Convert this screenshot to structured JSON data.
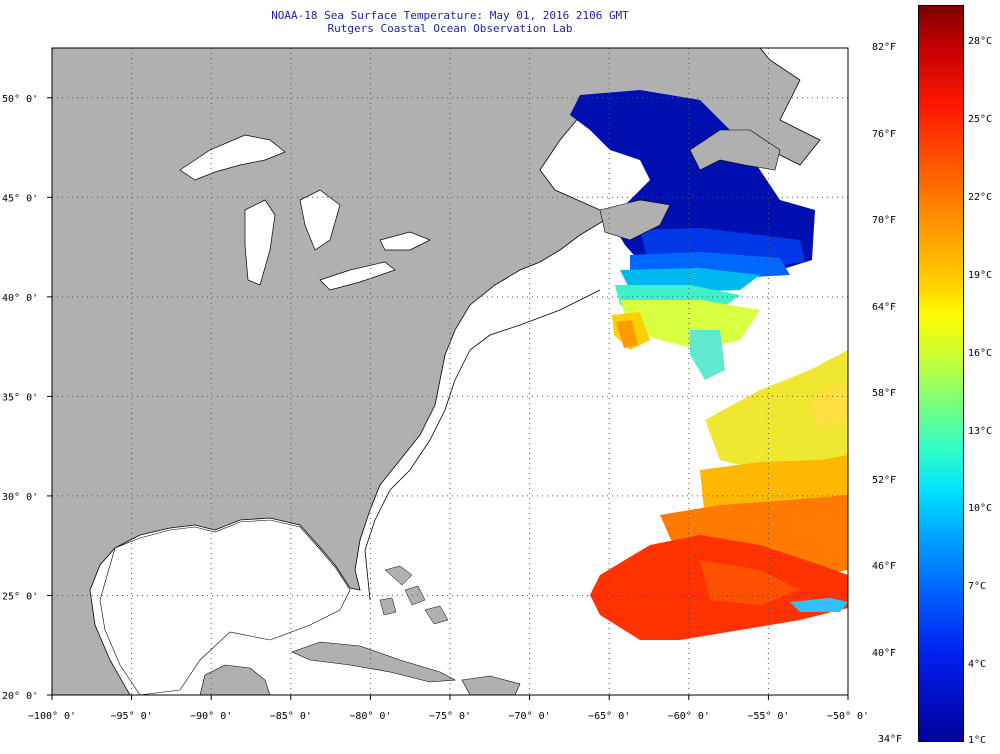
{
  "header": {
    "title": "NOAA-18 Sea Surface Temperature:  May 01, 2016 2106 GMT",
    "subtitle": "Rutgers Coastal Ocean Observation Lab"
  },
  "axes": {
    "x_ticks": [
      "−100° 0'",
      "−95° 0'",
      "−90° 0'",
      "−85° 0'",
      "−80° 0'",
      "−75° 0'",
      "−70° 0'",
      "−65° 0'",
      "−60° 0'",
      "−55° 0'",
      "−50° 0'"
    ],
    "x_values": [
      -100,
      -95,
      -90,
      -85,
      -80,
      -75,
      -70,
      -65,
      -60,
      -55,
      -50
    ],
    "y_ticks": [
      "20° 0'",
      "25° 0'",
      "30° 0'",
      "35° 0'",
      "40° 0'",
      "45° 0'",
      "50° 0'"
    ],
    "y_values": [
      20,
      25,
      30,
      35,
      40,
      45,
      50
    ],
    "lon_range": [
      -100,
      -50
    ],
    "lat_range": [
      20,
      52.5
    ],
    "grid": "dotted"
  },
  "colorbar": {
    "fahrenheit_labels": [
      "82°F",
      "76°F",
      "70°F",
      "64°F",
      "58°F",
      "52°F",
      "46°F",
      "40°F",
      "34°F"
    ],
    "fahrenheit_values": [
      82,
      76,
      70,
      64,
      58,
      52,
      46,
      40,
      34
    ],
    "celsius_labels": [
      "28°C",
      "25°C",
      "22°C",
      "19°C",
      "16°C",
      "13°C",
      "10°C",
      "7°C",
      "4°C",
      "1°C"
    ],
    "celsius_values": [
      28,
      25,
      22,
      19,
      16,
      13,
      10,
      7,
      4,
      1
    ],
    "range_f": [
      34,
      85
    ]
  },
  "colors": {
    "land": "#b0b0b0",
    "no_data": "#ffffff",
    "title": "#1e1ea0",
    "cold": "#0018c8",
    "mid": "#ffe600",
    "warm": "#ff3000"
  }
}
